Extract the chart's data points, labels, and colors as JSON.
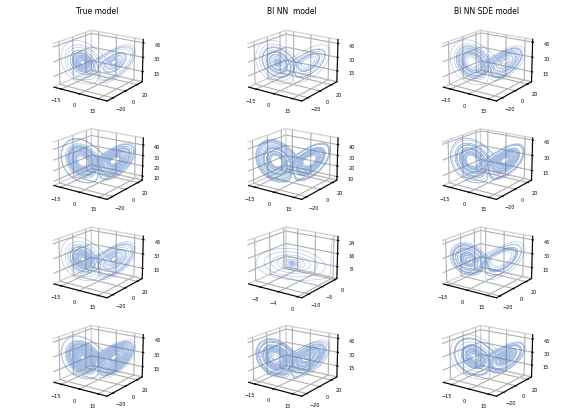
{
  "nrows": 4,
  "ncols": 3,
  "col_titles": [
    "True model",
    "BI NN  model",
    "BI NN SDE model"
  ],
  "line_color": "#3a6fbf",
  "line_alpha": 0.45,
  "line_width": 0.4,
  "figsize": [
    5.84,
    4.1
  ],
  "dpi": 100,
  "elev": 18,
  "azim": -55,
  "tick_fontsize": 3.5,
  "title_fontsize": 5.5
}
